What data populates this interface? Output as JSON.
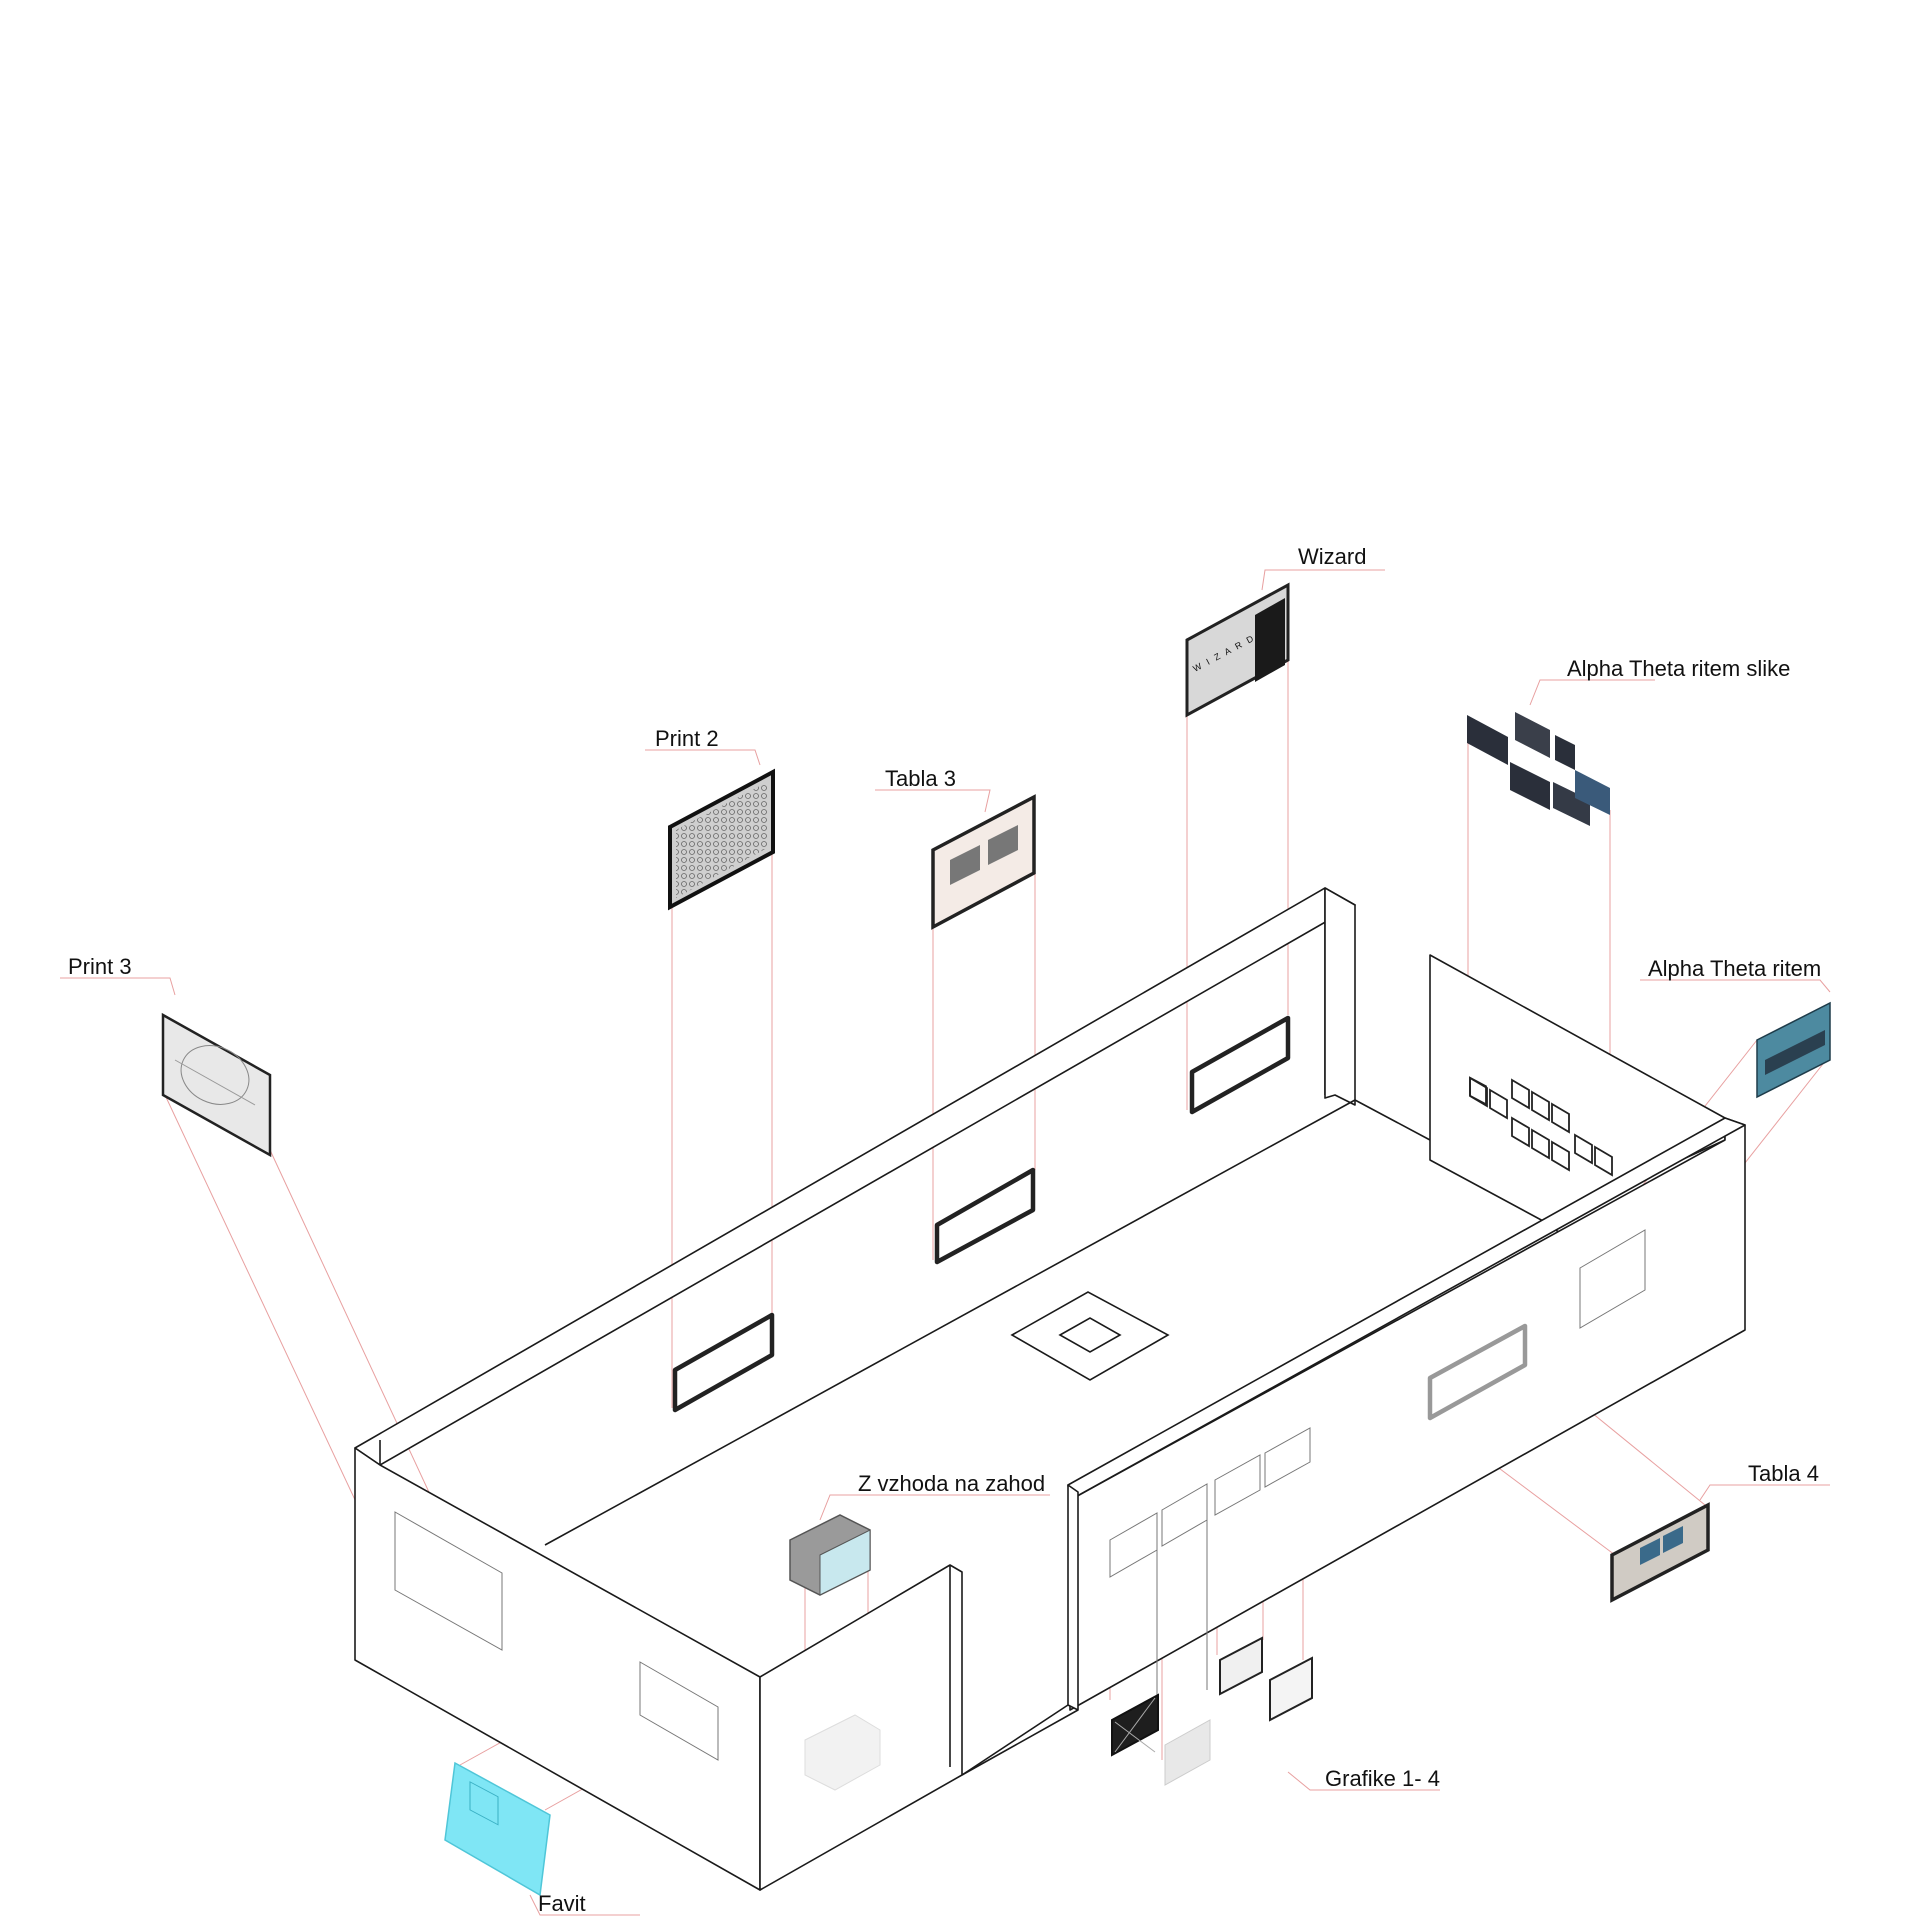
{
  "labels": {
    "wizard": "Wizard",
    "alpha_theta_slike": "Alpha Theta ritem slike",
    "print2": "Print 2",
    "tabla3": "Tabla 3",
    "print3": "Print 3",
    "alpha_theta": "Alpha Theta ritem",
    "z_vzhoda": "Z vzhoda na zahod",
    "tabla4": "Tabla 4",
    "grafike": "Grafike 1- 4",
    "favit": "Favit"
  },
  "wizard_logo": "W I Z A R D",
  "colors": {
    "walls": "#1a1a1a",
    "leader_lines": "#e8a0a0",
    "cyan_artwork": "#7fe6f5",
    "dark_artwork": "#2a2f3a"
  }
}
